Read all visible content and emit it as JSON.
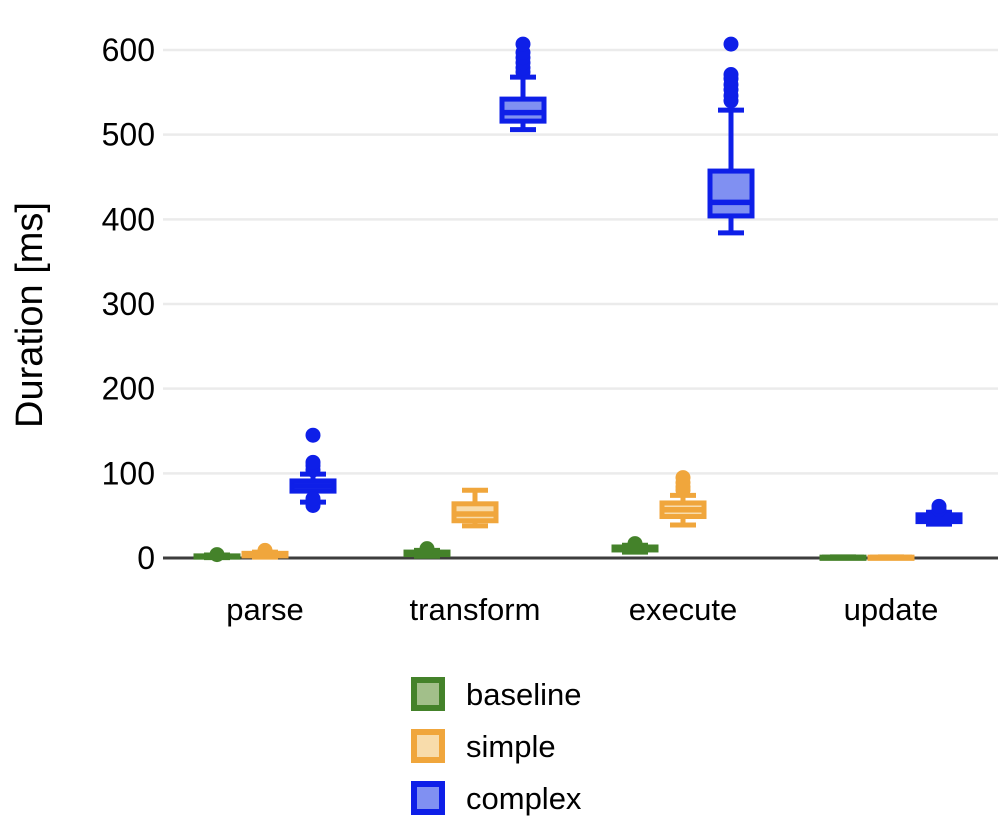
{
  "chart_data": {
    "type": "boxplot",
    "title": "",
    "xlabel": "",
    "ylabel": "Duration [ms]",
    "categories": [
      "parse",
      "transform",
      "execute",
      "update"
    ],
    "y_ticks": [
      0,
      100,
      200,
      300,
      400,
      500,
      600
    ],
    "ylim": [
      0,
      620
    ],
    "grid": "horizontal-light-gray",
    "legend_position": "bottom-center",
    "axis_color": "#3d3d3d",
    "gridline_color": "#ebebeb",
    "series": [
      {
        "name": "baseline",
        "stroke": "#44822a",
        "fill": "#a2bf8a",
        "boxes": [
          {
            "category": "parse",
            "min": 0.5,
            "q1": 1,
            "median": 1.5,
            "q3": 2.5,
            "max": 3.5,
            "outliers": [
              4
            ]
          },
          {
            "category": "transform",
            "min": 2,
            "q1": 4,
            "median": 5,
            "q3": 7,
            "max": 9,
            "outliers": [
              11
            ]
          },
          {
            "category": "execute",
            "min": 7,
            "q1": 9.5,
            "median": 11,
            "q3": 13,
            "max": 15,
            "outliers": [
              17
            ]
          },
          {
            "category": "update",
            "min": 0.2,
            "q1": 0.4,
            "median": 0.7,
            "q3": 1,
            "max": 1.4,
            "outliers": []
          }
        ]
      },
      {
        "name": "simple",
        "stroke": "#f0a63c",
        "fill": "#f8dcab",
        "boxes": [
          {
            "category": "parse",
            "min": 1,
            "q1": 2.5,
            "median": 4,
            "q3": 5.5,
            "max": 7,
            "outliers": [
              9
            ]
          },
          {
            "category": "transform",
            "min": 38,
            "q1": 44,
            "median": 52,
            "q3": 64,
            "max": 80,
            "outliers": []
          },
          {
            "category": "execute",
            "min": 39,
            "q1": 49,
            "median": 57,
            "q3": 65,
            "max": 74,
            "outliers": [
              80,
              84,
              89,
              95
            ]
          },
          {
            "category": "update",
            "min": 0.2,
            "q1": 0.4,
            "median": 0.7,
            "q3": 1,
            "max": 1.4,
            "outliers": []
          }
        ]
      },
      {
        "name": "complex",
        "stroke": "#0e1fe8",
        "fill": "#8090f2",
        "boxes": [
          {
            "category": "parse",
            "min": 66,
            "q1": 79,
            "median": 85,
            "q3": 91,
            "max": 99,
            "outliers": [
              62,
              70,
              104,
              109,
              113,
              145
            ]
          },
          {
            "category": "transform",
            "min": 506,
            "q1": 516,
            "median": 526,
            "q3": 542,
            "max": 568,
            "outliers": [
              574,
              579,
              585,
              591,
              597,
              607
            ]
          },
          {
            "category": "execute",
            "min": 384,
            "q1": 404,
            "median": 420,
            "q3": 457,
            "max": 529,
            "outliers": [
              540,
              546,
              553,
              559,
              566,
              571,
              607
            ]
          },
          {
            "category": "update",
            "min": 40,
            "q1": 43,
            "median": 47,
            "q3": 51,
            "max": 54,
            "outliers": [
              57,
              61
            ]
          }
        ]
      }
    ]
  }
}
